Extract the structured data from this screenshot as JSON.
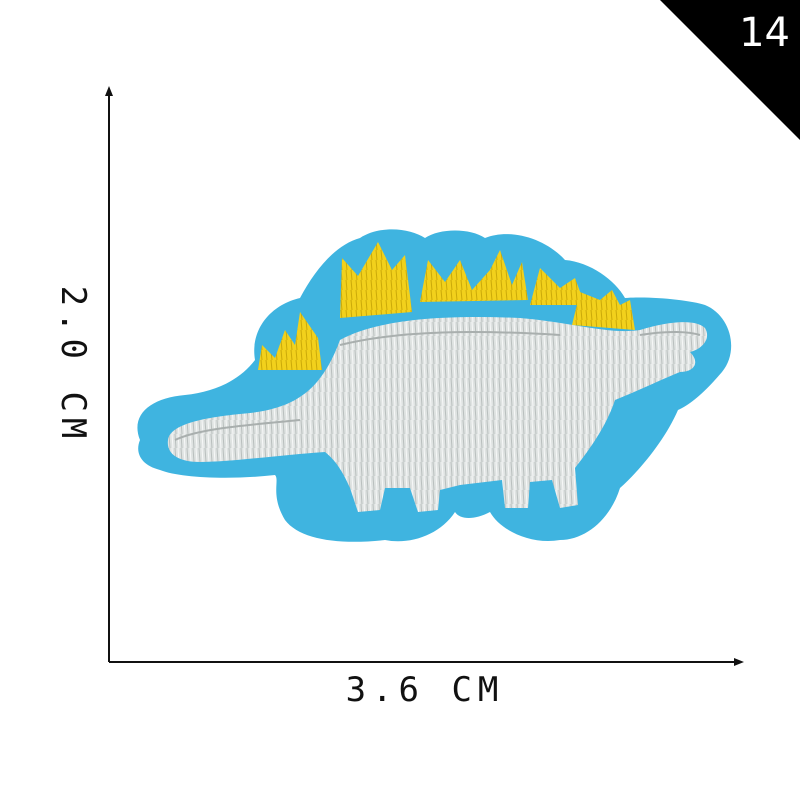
{
  "badge": {
    "number": "14",
    "background": "#000000",
    "text_color": "#ffffff"
  },
  "dimensions": {
    "width_label": "3.6 CM",
    "height_label": "2.0 CM"
  },
  "product": {
    "subject": "stegosaurus-embroidered-patch",
    "colors": {
      "backing": "#3fb4e0",
      "body": "#dfe3e2",
      "plates": "#f2d11c"
    }
  }
}
